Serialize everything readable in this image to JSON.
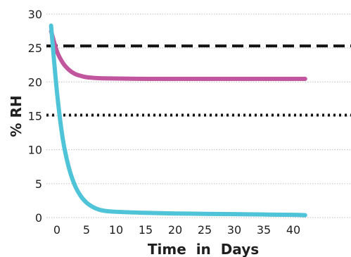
{
  "chart_data": {
    "type": "line",
    "xlabel": "Time  in  Days",
    "ylabel": "% RH",
    "xlim": [
      -1,
      42
    ],
    "ylim": [
      0,
      30
    ],
    "xticks": [
      0,
      5,
      10,
      15,
      20,
      25,
      30,
      35,
      40
    ],
    "yticks": [
      0,
      5,
      10,
      15,
      20,
      25,
      30
    ],
    "grid": true,
    "reference_lines": [
      {
        "style": "dashed",
        "y": 25.3,
        "color": "#111111"
      },
      {
        "style": "dotted",
        "y": 15.1,
        "color": "#111111"
      }
    ],
    "series": [
      {
        "color": "#c2569e",
        "x": [
          -1,
          0,
          1,
          2,
          3,
          4,
          5,
          7,
          10,
          15,
          20,
          25,
          30,
          35,
          40,
          42
        ],
        "y": [
          27.5,
          24.5,
          22.8,
          21.8,
          21.2,
          20.9,
          20.7,
          20.55,
          20.5,
          20.45,
          20.45,
          20.45,
          20.45,
          20.45,
          20.45,
          20.45
        ]
      },
      {
        "color": "#4fc3d7",
        "x": [
          -1,
          0,
          1,
          2,
          3,
          4,
          5,
          6,
          7,
          8,
          10,
          15,
          20,
          25,
          30,
          35,
          40,
          42
        ],
        "y": [
          28.3,
          18.5,
          11.5,
          7.4,
          4.8,
          3.2,
          2.2,
          1.6,
          1.2,
          1.0,
          0.85,
          0.7,
          0.6,
          0.55,
          0.5,
          0.45,
          0.4,
          0.35
        ]
      }
    ]
  }
}
